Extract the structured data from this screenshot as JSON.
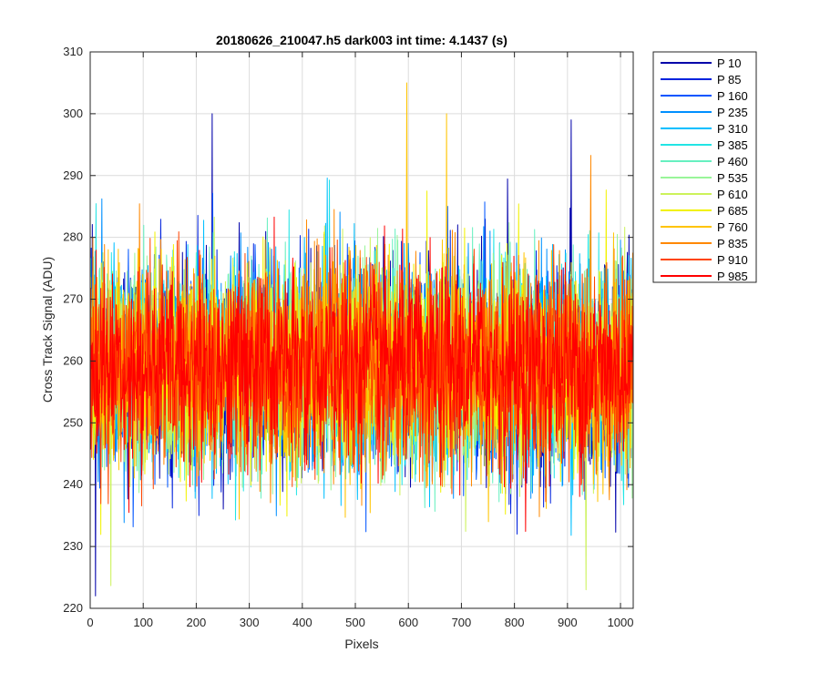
{
  "chart_data": {
    "type": "line",
    "title": "20180626_210047.h5  dark003   int time: 4.1437 (s)",
    "xlabel": "Pixels",
    "ylabel": "Cross Track Signal (ADU)",
    "xlim": [
      0,
      1024
    ],
    "ylim": [
      220,
      310
    ],
    "xticks": [
      0,
      100,
      200,
      300,
      400,
      500,
      600,
      700,
      800,
      900,
      1000
    ],
    "yticks": [
      220,
      230,
      240,
      250,
      260,
      270,
      280,
      290,
      300,
      310
    ],
    "grid": true,
    "legend_position": "outside-top-right",
    "noise_profile": {
      "mean": 259,
      "std": 8,
      "min": 222,
      "max": 305
    },
    "series": [
      {
        "name": "P 10",
        "color": "#0000AA"
      },
      {
        "name": "P 85",
        "color": "#0022DD"
      },
      {
        "name": "P 160",
        "color": "#0055FF"
      },
      {
        "name": "P 235",
        "color": "#0090FF"
      },
      {
        "name": "P 310",
        "color": "#00BFFF"
      },
      {
        "name": "P 385",
        "color": "#22E5E5"
      },
      {
        "name": "P 460",
        "color": "#66F0C0"
      },
      {
        "name": "P 535",
        "color": "#99F599"
      },
      {
        "name": "P 610",
        "color": "#CCF25A"
      },
      {
        "name": "P 685",
        "color": "#F2F200"
      },
      {
        "name": "P 760",
        "color": "#FFC400"
      },
      {
        "name": "P 835",
        "color": "#FF8800"
      },
      {
        "name": "P 910",
        "color": "#FF4400"
      },
      {
        "name": "P 985",
        "color": "#FF0000"
      }
    ],
    "peaks": [
      {
        "x": 597,
        "y": 305,
        "series": "P 760"
      },
      {
        "x": 230,
        "y": 300,
        "series": "P 10"
      },
      {
        "x": 907,
        "y": 299,
        "series": "P 10"
      },
      {
        "x": 672,
        "y": 300,
        "series": "P 760"
      },
      {
        "x": 10,
        "y": 222,
        "series": "P 10"
      },
      {
        "x": 935,
        "y": 223,
        "series": "P 610"
      }
    ]
  }
}
